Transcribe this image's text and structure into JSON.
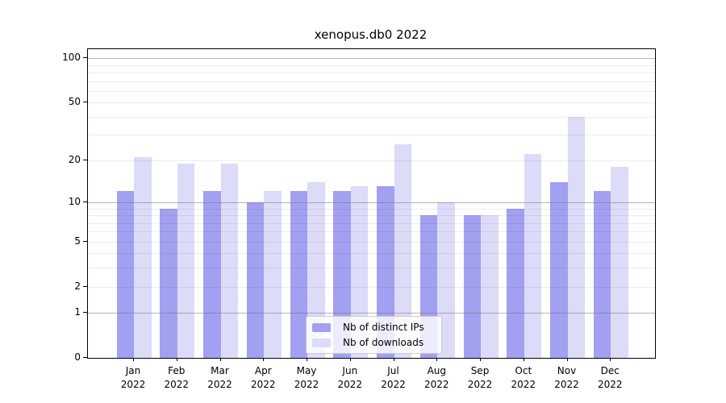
{
  "title": "xenopus.db0 2022",
  "colors": {
    "distinct_ips_bar": "#a2a0f0",
    "downloads_bar": "#dcdbf8",
    "grid_major": "#b0b0b0",
    "grid_minor": "#e9e9e9",
    "axis": "#000000",
    "legend_background": "rgba(255,255,255,0.8)"
  },
  "chart_data": {
    "type": "bar",
    "title": "xenopus.db0 2022",
    "categories": [
      "Jan 2022",
      "Feb 2022",
      "Mar 2022",
      "Apr 2022",
      "May 2022",
      "Jun 2022",
      "Jul 2022",
      "Aug 2022",
      "Sep 2022",
      "Oct 2022",
      "Nov 2022",
      "Dec 2022"
    ],
    "series": [
      {
        "name": "Nb of distinct IPs",
        "color": "#a2a0f0",
        "values": [
          12,
          9,
          12,
          10,
          12,
          12,
          13,
          8,
          8,
          9,
          14,
          12
        ]
      },
      {
        "name": "Nb of downloads",
        "color": "#dcdbf8",
        "values": [
          21,
          19,
          19,
          12,
          14,
          13,
          26,
          10,
          8,
          22,
          40,
          18
        ]
      }
    ],
    "xlabel": "",
    "ylabel": "",
    "yscale": "log1p",
    "ylim": [
      0,
      115
    ],
    "y_tick_labels": [
      0,
      1,
      2,
      5,
      10,
      20,
      50,
      100
    ],
    "y_major_gridlines": [
      1,
      10,
      100
    ],
    "y_minor_gridlines": [
      2,
      3,
      4,
      5,
      6,
      7,
      8,
      9,
      20,
      30,
      40,
      50,
      60,
      70,
      80,
      90
    ],
    "grid": true,
    "legend_position": "lower center"
  }
}
